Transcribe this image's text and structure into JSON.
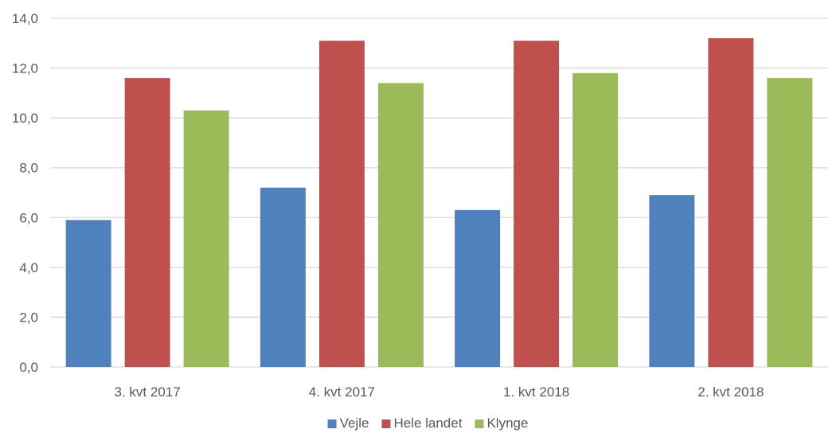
{
  "chart_data": {
    "type": "bar",
    "title": "",
    "xlabel": "",
    "ylabel": "",
    "categories": [
      "3. kvt 2017",
      "4. kvt 2017",
      "1. kvt 2018",
      "2. kvt 2018"
    ],
    "series": [
      {
        "name": "Vejle",
        "color": "#4f81bd",
        "values": [
          5.9,
          7.2,
          6.3,
          6.9
        ]
      },
      {
        "name": "Hele landet",
        "color": "#c0504d",
        "values": [
          11.6,
          13.1,
          13.1,
          13.2
        ]
      },
      {
        "name": "Klynge",
        "color": "#9bbb59",
        "values": [
          10.3,
          11.4,
          11.8,
          11.6
        ]
      }
    ],
    "ylim": [
      0,
      14
    ],
    "yticks": [
      0,
      2,
      4,
      6,
      8,
      10,
      12,
      14
    ],
    "ytick_labels": [
      "0,0",
      "2,0",
      "4,0",
      "6,0",
      "8,0",
      "10,0",
      "12,0",
      "14,0"
    ],
    "grid": true,
    "legend_position": "bottom"
  }
}
